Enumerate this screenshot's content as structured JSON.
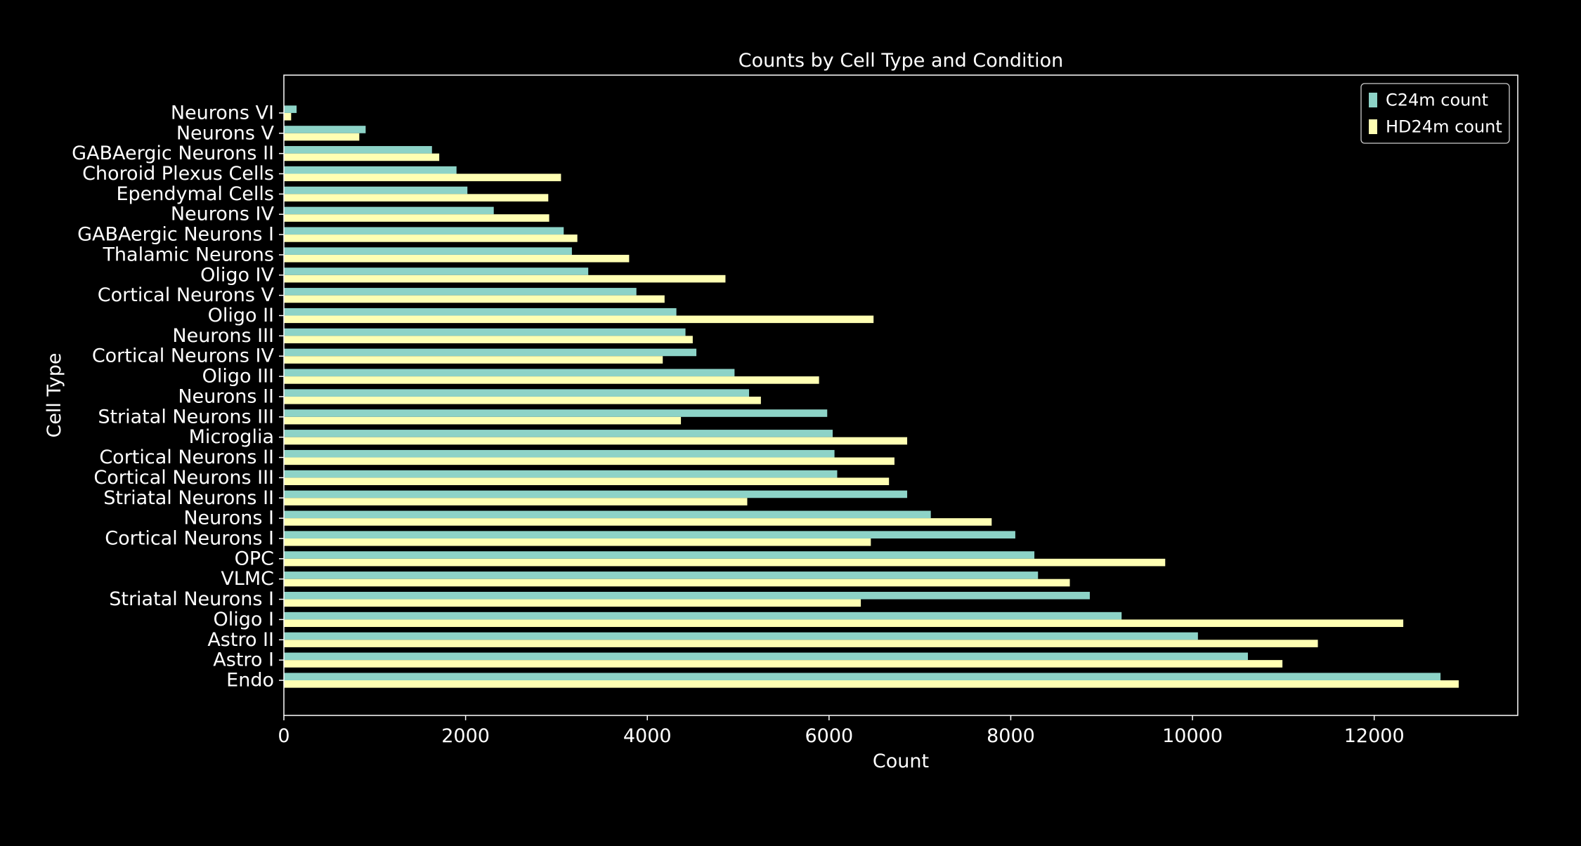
{
  "chart_data": {
    "type": "bar",
    "orientation": "horizontal",
    "title": "Counts by Cell Type and Condition",
    "xlabel": "Count",
    "ylabel": "Cell Type",
    "xlim": [
      0,
      13580
    ],
    "xticks": [
      0,
      2000,
      4000,
      6000,
      8000,
      10000,
      12000
    ],
    "xtick_labels": [
      "0",
      "2000",
      "4000",
      "6000",
      "8000",
      "10000",
      "12000"
    ],
    "grid": false,
    "legend_position": "top-right",
    "categories": [
      "Endo",
      "Astro I",
      "Astro II",
      "Oligo I",
      "Striatal Neurons I",
      "VLMC",
      "OPC",
      "Cortical Neurons I",
      "Neurons I",
      "Striatal Neurons II",
      "Cortical Neurons III",
      "Cortical Neurons II",
      "Microglia",
      "Striatal Neurons III",
      "Neurons II",
      "Oligo III",
      "Cortical Neurons IV",
      "Neurons III",
      "Oligo II",
      "Cortical Neurons V",
      "Oligo IV",
      "Thalamic Neurons",
      "GABAergic Neurons I",
      "Neurons IV",
      "Ependymal Cells",
      "Choroid Plexus Cells",
      "GABAergic Neurons II",
      "Neurons V",
      "Neurons VI"
    ],
    "series": [
      {
        "name": "C24m count",
        "color": "#8dd3c7",
        "values": [
          12730,
          10610,
          10060,
          9220,
          8870,
          8300,
          8260,
          8050,
          7120,
          6860,
          6090,
          6060,
          6040,
          5980,
          5120,
          4960,
          4540,
          4420,
          4320,
          3880,
          3350,
          3170,
          3080,
          2310,
          2020,
          1900,
          1630,
          900,
          140
        ]
      },
      {
        "name": "HD24m count",
        "color": "#ffffb3",
        "values": [
          12930,
          10990,
          11380,
          12320,
          6350,
          8650,
          9700,
          6460,
          7790,
          5100,
          6660,
          6720,
          6860,
          4370,
          5250,
          5890,
          4170,
          4500,
          6490,
          4190,
          4860,
          3800,
          3230,
          2920,
          2910,
          3050,
          1710,
          830,
          80
        ]
      }
    ]
  }
}
